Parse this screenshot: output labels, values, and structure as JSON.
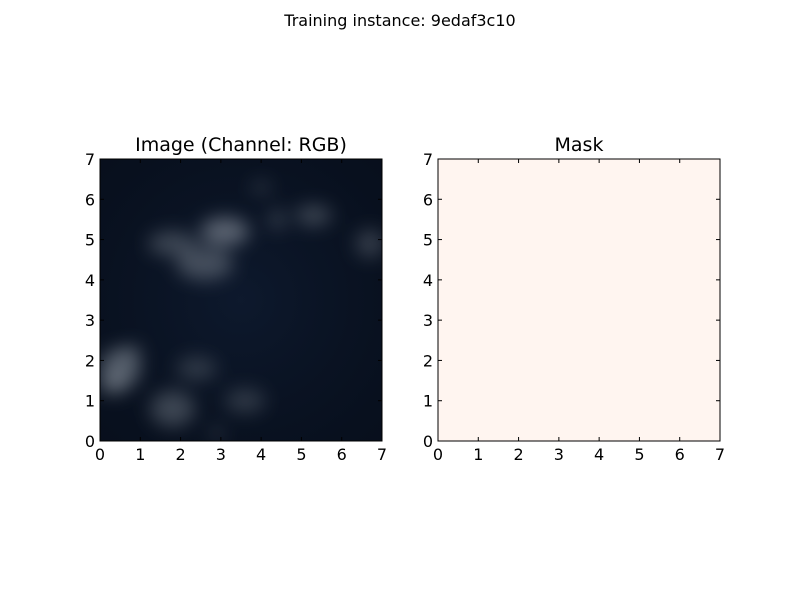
{
  "figure": {
    "suptitle": "Training instance: 9edaf3c10"
  },
  "chart_data": [
    {
      "type": "heatmap",
      "title": "Image (Channel: RGB)",
      "xlim": [
        0,
        7
      ],
      "ylim": [
        0,
        7
      ],
      "xticks": [
        "0",
        "1",
        "2",
        "3",
        "4",
        "5",
        "6",
        "7"
      ],
      "yticks": [
        "0",
        "1",
        "2",
        "3",
        "4",
        "5",
        "6",
        "7"
      ],
      "background_color": "#0a1426",
      "cloud_color": "#9aa3ad",
      "clouds": [
        {
          "x": 3.1,
          "y": 5.2,
          "rx": 0.6,
          "ry": 0.35,
          "opacity": 0.55
        },
        {
          "x": 2.6,
          "y": 4.4,
          "rx": 0.7,
          "ry": 0.4,
          "opacity": 0.4
        },
        {
          "x": 1.8,
          "y": 4.9,
          "rx": 0.6,
          "ry": 0.3,
          "opacity": 0.35
        },
        {
          "x": 5.3,
          "y": 5.6,
          "rx": 0.45,
          "ry": 0.25,
          "opacity": 0.35
        },
        {
          "x": 6.7,
          "y": 4.9,
          "rx": 0.35,
          "ry": 0.35,
          "opacity": 0.3
        },
        {
          "x": 4.0,
          "y": 6.3,
          "rx": 0.25,
          "ry": 0.12,
          "opacity": 0.3
        },
        {
          "x": 4.4,
          "y": 5.5,
          "rx": 0.2,
          "ry": 0.25,
          "opacity": 0.3
        },
        {
          "x": 0.5,
          "y": 1.8,
          "rx": 0.5,
          "ry": 0.5,
          "opacity": 0.5
        },
        {
          "x": 0.3,
          "y": 1.4,
          "rx": 0.35,
          "ry": 0.25,
          "opacity": 0.4
        },
        {
          "x": 1.8,
          "y": 0.8,
          "rx": 0.55,
          "ry": 0.45,
          "opacity": 0.35
        },
        {
          "x": 2.4,
          "y": 1.8,
          "rx": 0.5,
          "ry": 0.3,
          "opacity": 0.25
        },
        {
          "x": 3.6,
          "y": 1.0,
          "rx": 0.5,
          "ry": 0.3,
          "opacity": 0.25
        },
        {
          "x": 2.9,
          "y": 0.2,
          "rx": 0.15,
          "ry": 0.15,
          "opacity": 0.3
        },
        {
          "x": 0.8,
          "y": 2.2,
          "rx": 0.25,
          "ry": 0.2,
          "opacity": 0.3
        }
      ]
    },
    {
      "type": "heatmap",
      "title": "Mask",
      "xlim": [
        0,
        7
      ],
      "ylim": [
        0,
        7
      ],
      "xticks": [
        "0",
        "1",
        "2",
        "3",
        "4",
        "5",
        "6",
        "7"
      ],
      "yticks": [
        "0",
        "1",
        "2",
        "3",
        "4",
        "5",
        "6",
        "7"
      ],
      "fill_color": "#fff5f0",
      "mask_value": 0
    }
  ]
}
